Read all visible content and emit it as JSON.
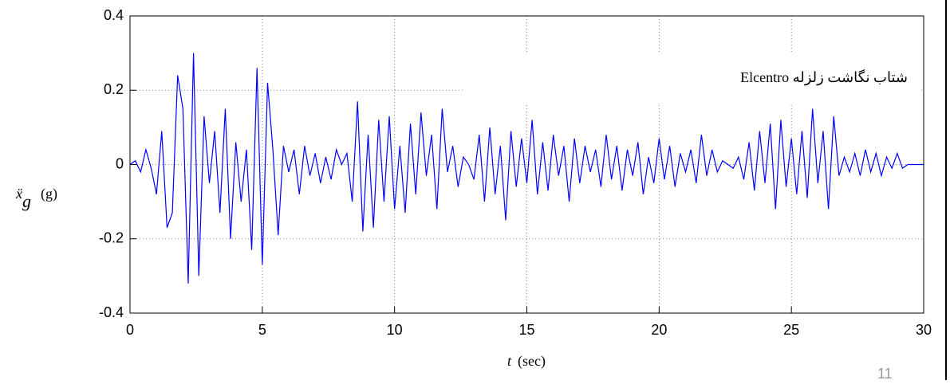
{
  "chart_data": {
    "type": "line",
    "annotation": "شتاب نگاشت زلزله Elcentro",
    "ylabel": "ẍ",
    "ylabel_sub": "g",
    "ylabel_unit": "(g)",
    "xlabel": "t",
    "xlabel_unit": "(sec)",
    "xlim": [
      0,
      30
    ],
    "xticks": [
      0,
      5,
      10,
      15,
      20,
      25,
      30
    ],
    "ylim": [
      -0.4,
      0.4
    ],
    "yticks": [
      0.4,
      0.2,
      0,
      -0.2,
      -0.4
    ],
    "grid": true,
    "series": [
      {
        "color": "#0000ff",
        "x": [
          0,
          0.2,
          0.4,
          0.6,
          0.8,
          1,
          1.2,
          1.4,
          1.6,
          1.8,
          2,
          2.2,
          2.4,
          2.6,
          2.8,
          3,
          3.2,
          3.4,
          3.6,
          3.8,
          4,
          4.2,
          4.4,
          4.6,
          4.8,
          5,
          5.2,
          5.4,
          5.6,
          5.8,
          6,
          6.2,
          6.4,
          6.6,
          6.8,
          7,
          7.2,
          7.4,
          7.6,
          7.8,
          8,
          8.2,
          8.4,
          8.6,
          8.8,
          9,
          9.2,
          9.4,
          9.6,
          9.8,
          10,
          10.2,
          10.4,
          10.6,
          10.8,
          11,
          11.2,
          11.4,
          11.6,
          11.8,
          12,
          12.2,
          12.4,
          12.6,
          12.8,
          13,
          13.2,
          13.4,
          13.6,
          13.8,
          14,
          14.2,
          14.4,
          14.6,
          14.8,
          15,
          15.2,
          15.4,
          15.6,
          15.8,
          16,
          16.2,
          16.4,
          16.6,
          16.8,
          17,
          17.2,
          17.4,
          17.6,
          17.8,
          18,
          18.2,
          18.4,
          18.6,
          18.8,
          19,
          19.2,
          19.4,
          19.6,
          19.8,
          20,
          20.2,
          20.4,
          20.6,
          20.8,
          21,
          21.2,
          21.4,
          21.6,
          21.8,
          22,
          22.2,
          22.4,
          22.6,
          22.8,
          23,
          23.2,
          23.4,
          23.6,
          23.8,
          24,
          24.2,
          24.4,
          24.6,
          24.8,
          25,
          25.2,
          25.4,
          25.6,
          25.8,
          26,
          26.2,
          26.4,
          26.6,
          26.8,
          27,
          27.2,
          27.4,
          27.6,
          27.8,
          28,
          28.2,
          28.4,
          28.6,
          28.8,
          29,
          29.2,
          29.4,
          29.6,
          29.8,
          30
        ],
        "values": [
          0,
          0.01,
          -0.02,
          0.04,
          -0.01,
          -0.08,
          0.09,
          -0.17,
          -0.13,
          0.24,
          0.15,
          -0.32,
          0.3,
          -0.3,
          0.13,
          -0.05,
          0.09,
          -0.13,
          0.15,
          -0.2,
          0.06,
          -0.1,
          0.04,
          -0.23,
          0.26,
          -0.27,
          0.22,
          0.04,
          -0.19,
          0.05,
          -0.02,
          0.04,
          -0.08,
          0.05,
          -0.03,
          0.03,
          -0.05,
          0.02,
          -0.04,
          0.04,
          0,
          0.03,
          -0.1,
          0.17,
          -0.18,
          0.08,
          -0.17,
          0.12,
          -0.1,
          0.13,
          -0.12,
          0.05,
          -0.13,
          0.11,
          -0.08,
          0.14,
          -0.03,
          0.08,
          -0.12,
          0.15,
          -0.02,
          0.05,
          -0.06,
          0.02,
          0,
          -0.04,
          0.08,
          -0.1,
          0.1,
          -0.08,
          0.05,
          -0.15,
          0.09,
          -0.06,
          0.07,
          -0.05,
          0.12,
          -0.08,
          0.06,
          -0.07,
          0.08,
          -0.03,
          0.05,
          -0.1,
          0.07,
          -0.05,
          0.05,
          -0.02,
          0.04,
          -0.06,
          0.08,
          -0.04,
          0.05,
          -0.07,
          0.04,
          -0.03,
          0.06,
          -0.08,
          0.02,
          -0.05,
          0.07,
          -0.04,
          0.05,
          -0.06,
          0.03,
          -0.02,
          0.04,
          -0.05,
          0.08,
          -0.03,
          0.04,
          -0.02,
          0.01,
          0,
          -0.01,
          0.02,
          -0.04,
          0.06,
          -0.07,
          0.09,
          -0.05,
          0.11,
          -0.12,
          0.12,
          -0.06,
          0.07,
          -0.08,
          0.09,
          -0.09,
          0.15,
          -0.05,
          0.09,
          -0.12,
          0.13,
          -0.03,
          0.02,
          -0.02,
          0.03,
          -0.03,
          0.04,
          -0.02,
          0.03,
          -0.03,
          0.02,
          -0.01,
          0.03,
          -0.01,
          0,
          0,
          0,
          0
        ]
      }
    ]
  },
  "page_number": "11"
}
